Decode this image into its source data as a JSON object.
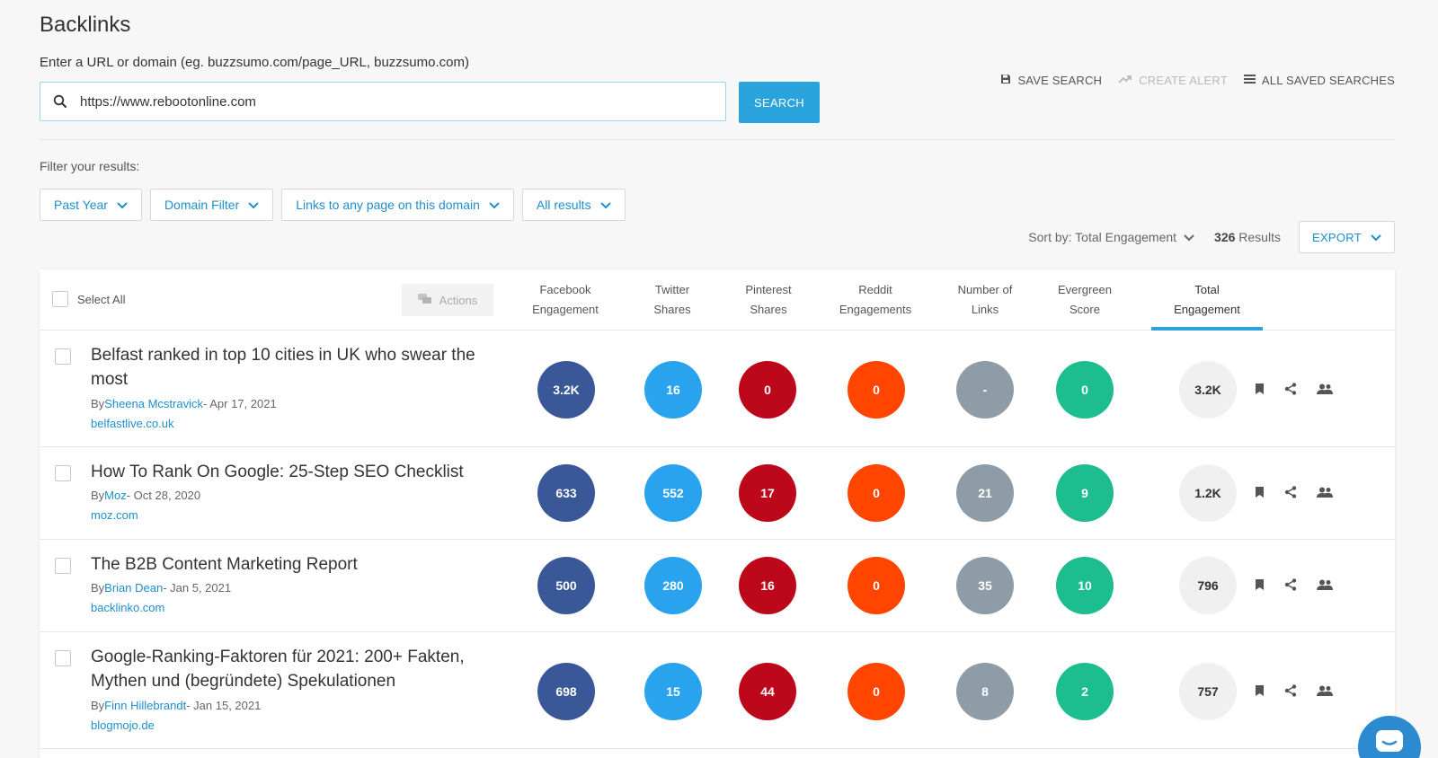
{
  "page": {
    "title": "Backlinks"
  },
  "search": {
    "label": "Enter a URL or domain (eg. buzzsumo.com/page_URL, buzzsumo.com)",
    "value": "https://www.rebootonline.com",
    "button": "SEARCH"
  },
  "top_actions": {
    "save": "SAVE SEARCH",
    "alert": "CREATE ALERT",
    "saved": "ALL SAVED SEARCHES"
  },
  "filters": {
    "label": "Filter your results:",
    "items": [
      "Past Year",
      "Domain Filter",
      "Links to any page on this domain",
      "All results"
    ]
  },
  "sort": {
    "label": "Sort by: Total Engagement",
    "results_count": "326",
    "results_suffix": " Results",
    "export": "EXPORT"
  },
  "table": {
    "select_all": "Select All",
    "actions": "Actions",
    "columns": [
      {
        "line1": "Facebook",
        "line2": "Engagement"
      },
      {
        "line1": "Twitter",
        "line2": "Shares"
      },
      {
        "line1": "Pinterest",
        "line2": "Shares"
      },
      {
        "line1": "Reddit",
        "line2": "Engagements"
      },
      {
        "line1": "Number of",
        "line2": "Links"
      },
      {
        "line1": "Evergreen",
        "line2": "Score"
      },
      {
        "line1": "Total",
        "line2": "Engagement"
      }
    ],
    "metric_colors": [
      "#3a5897",
      "#2aa3ef",
      "#bd081c",
      "#ff4500",
      "#8e9ca8",
      "#1ebd8f",
      "#f0f0f0"
    ],
    "rows": [
      {
        "title": "Belfast ranked in top 10 cities in UK who swear the most",
        "by": "By",
        "author": "Sheena Mcstravick",
        "date": "- Apr 17, 2021",
        "domain": "belfastlive.co.uk",
        "metrics": [
          "3.2K",
          "16",
          "0",
          "0",
          "-",
          "0",
          "3.2K"
        ]
      },
      {
        "title": "How To Rank On Google: 25-Step SEO Checklist",
        "by": "By",
        "author": "Moz",
        "date": "- Oct 28, 2020",
        "domain": "moz.com",
        "metrics": [
          "633",
          "552",
          "17",
          "0",
          "21",
          "9",
          "1.2K"
        ]
      },
      {
        "title": "The B2B Content Marketing Report",
        "by": "By",
        "author": "Brian Dean",
        "date": "- Jan 5, 2021",
        "domain": "backlinko.com",
        "metrics": [
          "500",
          "280",
          "16",
          "0",
          "35",
          "10",
          "796"
        ]
      },
      {
        "title": "Google-Ranking-Faktoren für 2021: 200+ Fakten, Mythen und (begründete) Spekulationen",
        "by": "By",
        "author": "Finn Hillebrandt",
        "date": "- Jan 15, 2021",
        "domain": "blogmojo.de",
        "metrics": [
          "698",
          "15",
          "44",
          "0",
          "8",
          "2",
          "757"
        ]
      }
    ]
  }
}
